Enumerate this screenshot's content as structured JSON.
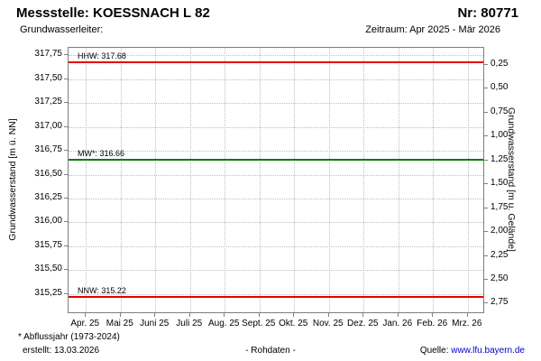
{
  "header": {
    "title": "Messstelle: KOESSNACH L 82",
    "number": "Nr: 80771",
    "aquifer_label": "Grundwasserleiter:",
    "period": "Zeitraum: Apr 2025 - Mär 2026"
  },
  "chart_data": {
    "type": "line",
    "title": "Grundwasserstand Messstelle KOESSNACH L 82, Apr 2025 - Mär 2026",
    "grid": true,
    "left_axis": {
      "label": "Grundwasserstand [m ü. NN]",
      "ticks": [
        "317,75",
        "317,50",
        "317,25",
        "317,00",
        "316,75",
        "316,50",
        "316,25",
        "316,00",
        "315,75",
        "315,50",
        "315,25"
      ],
      "tick_values": [
        317.75,
        317.5,
        317.25,
        317.0,
        316.75,
        316.5,
        316.25,
        316.0,
        315.75,
        315.5,
        315.25
      ],
      "ylim_top": 317.83,
      "ylim_bottom": 315.04
    },
    "right_axis": {
      "label": "Grundwasserstand [m u. Gelände]",
      "ticks": [
        "0,25",
        "0,50",
        "0,75",
        "1,00",
        "1,25",
        "1,50",
        "1,75",
        "2,00",
        "2,25",
        "2,50",
        "2,75"
      ],
      "tick_values": [
        0.25,
        0.5,
        0.75,
        1.0,
        1.25,
        1.5,
        1.75,
        2.0,
        2.25,
        2.5,
        2.75
      ],
      "ground_level": 317.9
    },
    "x_axis": {
      "ticks": [
        "Apr. 25",
        "Mai 25",
        "Juni 25",
        "Juli 25",
        "Aug. 25",
        "Sept. 25",
        "Okt. 25",
        "Nov. 25",
        "Dez. 25",
        "Jan. 26",
        "Feb. 26",
        "Mrz. 26"
      ]
    },
    "reference_lines": [
      {
        "name": "HHW",
        "label": "HHW: 317.68",
        "value": 317.68,
        "color": "#e60000"
      },
      {
        "name": "MW",
        "label": "MW*: 316.66",
        "value": 316.66,
        "color": "#007a00"
      },
      {
        "name": "NNW",
        "label": "NNW: 315.22",
        "value": 315.22,
        "color": "#e60000"
      }
    ],
    "series": []
  },
  "footer": {
    "note": "* Abflussjahr (1973-2024)",
    "created": "erstellt:  13.03.2026",
    "center": "- Rohdaten -",
    "source_label": "Quelle: ",
    "source_link": "www.lfu.bayern.de",
    "link_color": "#0000cc"
  }
}
